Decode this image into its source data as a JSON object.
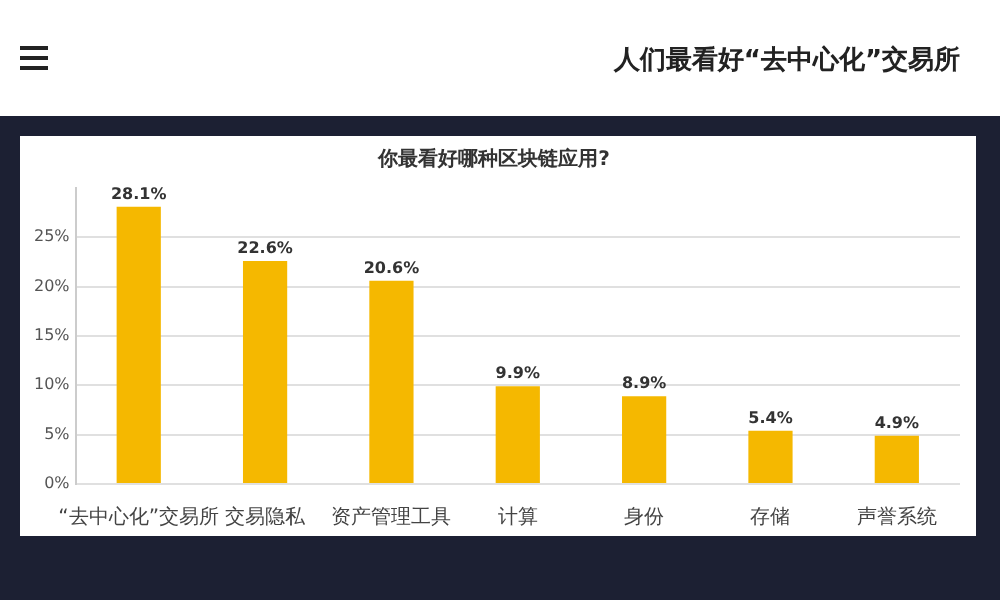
{
  "chart_data": {
    "type": "bar",
    "title": "人们最看好“去中心化”交易所",
    "subtitle": "你最看好哪种区块链应用?",
    "categories": [
      "“去中心化”交易所",
      "交易隐私",
      "资产管理工具",
      "计算",
      "身份",
      "存储",
      "声誉系统"
    ],
    "values": [
      28.1,
      22.6,
      20.6,
      9.9,
      8.9,
      5.4,
      4.9
    ],
    "color": "#f5b800",
    "ylim": [
      0,
      30
    ],
    "yticks": [
      {
        "value": 0,
        "label": "0%"
      },
      {
        "value": 5,
        "label": "5%"
      },
      {
        "value": 10,
        "label": "10%"
      },
      {
        "value": 15,
        "label": "15%"
      },
      {
        "value": 20,
        "label": "20%"
      },
      {
        "value": 25,
        "label": "25%"
      }
    ],
    "value_labels": [
      "28.1%",
      "22.6%",
      "20.6%",
      "9.9%",
      "8.9%",
      "5.4%",
      "4.9%"
    ],
    "grid": "y"
  }
}
